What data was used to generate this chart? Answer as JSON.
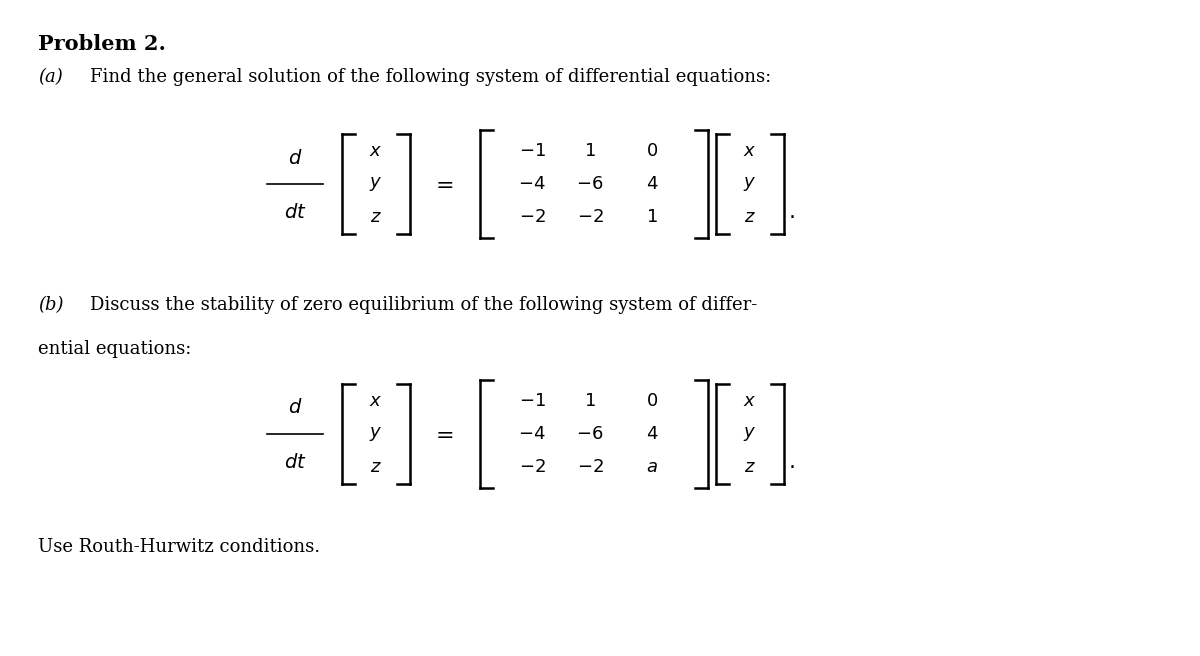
{
  "bg_color": "#ffffff",
  "text_color": "#000000",
  "title": "Problem 2.",
  "part_a_label": "(a)",
  "part_a_text": "Find the general solution of the following system of differential equations:",
  "part_b_label": "(b)",
  "part_b_text_line1": "Discuss the stability of zero equilibrium of the following system of differ-",
  "part_b_text_line2": "ential equations:",
  "routh_text": "Use Routh-Hurwitz conditions.",
  "matrix_a": [
    [
      "-1",
      "1",
      "0"
    ],
    [
      "-4",
      "-6",
      "4"
    ],
    [
      "-2",
      "-2",
      "1"
    ]
  ],
  "matrix_b": [
    [
      "-1",
      "1",
      "0"
    ],
    [
      "-4",
      "-6",
      "4"
    ],
    [
      "-2",
      "-2",
      "a"
    ]
  ],
  "vec": [
    "x",
    "y",
    "z"
  ],
  "fs_title": 15,
  "fs_body": 13,
  "fs_math": 13
}
